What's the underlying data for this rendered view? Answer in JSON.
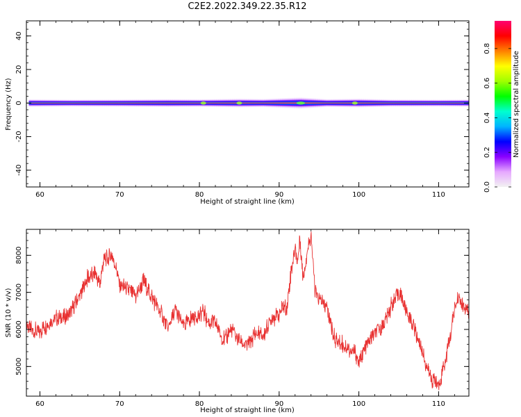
{
  "title": "C2E2.2022.349.22.35.R12",
  "chart_data": [
    {
      "type": "heatmap",
      "name": "spectrogram",
      "xlabel": "Height of straight line (km)",
      "ylabel": "Frequency (Hz)",
      "xlim": [
        58.3,
        113.8
      ],
      "ylim": [
        -50,
        49
      ],
      "xticks": [
        60,
        70,
        80,
        90,
        100,
        110
      ],
      "yticks": [
        -40,
        -20,
        0,
        20,
        40
      ],
      "band": {
        "x_start": 58.6,
        "x_end": 113.8,
        "center_hz": 0,
        "half_width_hz": [
          [
            58.6,
            2.4
          ],
          [
            64,
            2.2
          ],
          [
            70,
            2.3
          ],
          [
            76,
            2.5
          ],
          [
            80,
            2.4
          ],
          [
            85,
            2.8
          ],
          [
            88,
            2.6
          ],
          [
            92.7,
            3.6
          ],
          [
            96,
            2.5
          ],
          [
            100,
            2.8
          ],
          [
            104,
            2.3
          ],
          [
            110,
            2.2
          ],
          [
            113.8,
            2.3
          ]
        ],
        "hotspots_km": [
          92.7,
          85.0,
          80.5,
          99.5
        ]
      },
      "grid": false
    },
    {
      "type": "line",
      "name": "snr",
      "xlabel": "Height of straight line (km)",
      "ylabel": "SNR (10 * v/v)",
      "xlim": [
        58.3,
        113.8
      ],
      "ylim": [
        4200,
        8700
      ],
      "xticks": [
        60,
        70,
        80,
        90,
        100,
        110
      ],
      "yticks": [
        5000,
        6000,
        7000,
        8000
      ],
      "color": "#e83030",
      "grid": false,
      "series": [
        {
          "x": [
            58.3,
            59.0,
            60.0,
            61.0,
            62.0,
            63.0,
            64.0,
            65.0,
            66.0,
            67.0,
            67.5,
            68.0,
            68.5,
            69.0,
            69.5,
            70.0,
            71.0,
            72.0,
            73.0,
            74.0,
            75.0,
            75.5,
            76.0,
            77.0,
            78.0,
            79.0,
            80.0,
            80.5,
            81.0,
            82.0,
            83.0,
            84.0,
            85.0,
            86.0,
            87.0,
            88.0,
            89.0,
            90.0,
            90.5,
            91.0,
            91.5,
            92.0,
            92.3,
            92.6,
            93.0,
            93.3,
            93.7,
            94.0,
            94.5,
            95.0,
            96.0,
            97.0,
            98.0,
            99.0,
            99.5,
            100.0,
            101.0,
            102.0,
            103.0,
            104.0,
            104.5,
            105.0,
            105.5,
            106.0,
            107.0,
            108.0,
            108.5,
            109.0,
            110.0,
            111.0,
            112.0,
            112.5,
            113.0,
            113.8
          ],
          "y": [
            6100,
            6000,
            5950,
            6150,
            6300,
            6300,
            6500,
            6900,
            7400,
            7500,
            7200,
            7900,
            7900,
            8000,
            7700,
            7200,
            7100,
            6900,
            7300,
            6900,
            6500,
            6300,
            6000,
            6500,
            6100,
            6300,
            6400,
            6500,
            6200,
            6200,
            5700,
            6000,
            5700,
            5550,
            5900,
            5800,
            6300,
            6400,
            6600,
            6600,
            7600,
            8200,
            7800,
            8500,
            7400,
            7800,
            8300,
            8600,
            7000,
            6800,
            6600,
            5700,
            5600,
            5400,
            5400,
            5100,
            5600,
            5900,
            6100,
            6600,
            6800,
            7000,
            6800,
            6500,
            6000,
            5400,
            5000,
            4700,
            4500,
            5300,
            6500,
            6900,
            6600,
            6400
          ]
        }
      ]
    }
  ],
  "colorbar": {
    "label": "Normalized spectral amplitude",
    "ticks": [
      "0.0",
      "0.2",
      "0.4",
      "0.6",
      "0.8"
    ],
    "colors": [
      "#f2f2f2",
      "#e6a8ff",
      "#8a00ff",
      "#0000ff",
      "#00b4ff",
      "#00ffd0",
      "#00ff00",
      "#a0ff00",
      "#ffff00",
      "#ff8000",
      "#ff0000",
      "#ff0070"
    ]
  }
}
